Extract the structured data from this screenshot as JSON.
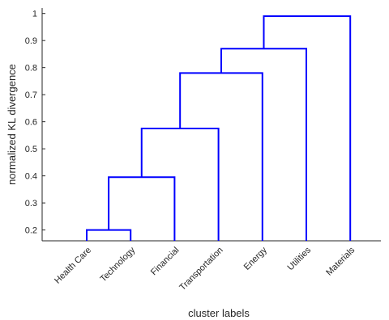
{
  "chart_data": {
    "type": "dendrogram",
    "xlabel": "cluster labels",
    "ylabel": "normalized KL divergence",
    "ylim": [
      0.16,
      1.02
    ],
    "yticks": [
      0.2,
      0.3,
      0.4,
      0.5,
      0.6,
      0.7,
      0.8,
      0.9,
      1
    ],
    "ytick_labels": [
      "0.2",
      "0.3",
      "0.4",
      "0.5",
      "0.6",
      "0.7",
      "0.8",
      "0.9",
      "1"
    ],
    "leaves": [
      "Health Care",
      "Technology",
      "Financial",
      "Transportation",
      "Energy",
      "Utilities",
      "Materials"
    ],
    "merges": [
      {
        "left": "Health Care",
        "right": "Technology",
        "height": 0.2
      },
      {
        "left": "cluster-1",
        "right": "Financial",
        "height": 0.395
      },
      {
        "left": "cluster-2",
        "right": "Transportation",
        "height": 0.575
      },
      {
        "left": "cluster-3",
        "right": "Energy",
        "height": 0.78
      },
      {
        "left": "cluster-4",
        "right": "Utilities",
        "height": 0.87
      },
      {
        "left": "cluster-5",
        "right": "Materials",
        "height": 0.99
      }
    ],
    "line_color": "#0000ff",
    "grid": false
  }
}
